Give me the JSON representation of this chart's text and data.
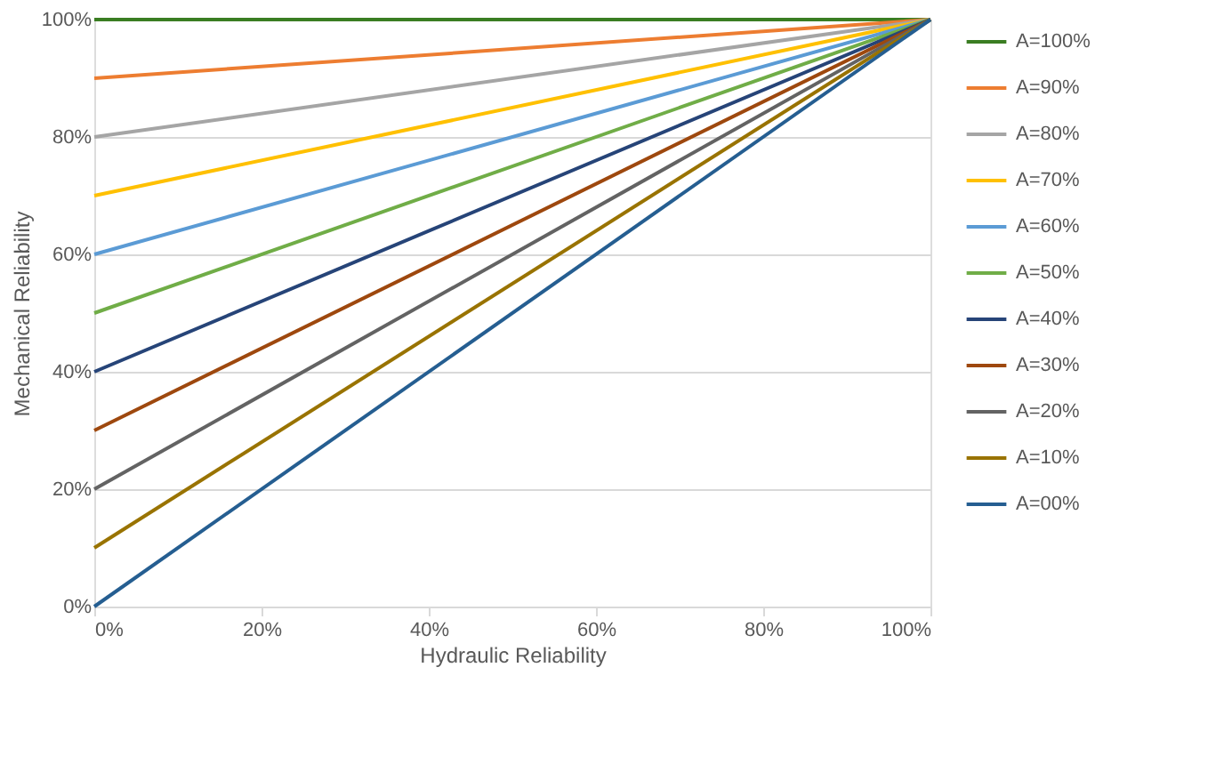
{
  "chart_data": {
    "type": "line",
    "xlabel": "Hydraulic Reliability",
    "ylabel": "Mechanical Reliability",
    "x": [
      0,
      100
    ],
    "xlim": [
      0,
      100
    ],
    "ylim": [
      0,
      100
    ],
    "xticks": [
      {
        "value": 0,
        "label": "0%"
      },
      {
        "value": 20,
        "label": "20%"
      },
      {
        "value": 40,
        "label": "40%"
      },
      {
        "value": 60,
        "label": "60%"
      },
      {
        "value": 80,
        "label": "80%"
      },
      {
        "value": 100,
        "label": "100%"
      }
    ],
    "yticks": [
      {
        "value": 0,
        "label": "0%"
      },
      {
        "value": 20,
        "label": "20%"
      },
      {
        "value": 40,
        "label": "40%"
      },
      {
        "value": 60,
        "label": "60%"
      },
      {
        "value": 80,
        "label": "80%"
      },
      {
        "value": 100,
        "label": "100%"
      }
    ],
    "grid": "y",
    "legend": "right",
    "marker": "none",
    "line_style": "solid",
    "series": [
      {
        "name": "A=100%",
        "color": "#3a7d22",
        "values": [
          100,
          100
        ]
      },
      {
        "name": "A=90%",
        "color": "#ed7d31",
        "values": [
          90,
          100
        ]
      },
      {
        "name": "A=80%",
        "color": "#a5a5a5",
        "values": [
          80,
          100
        ]
      },
      {
        "name": "A=70%",
        "color": "#ffc000",
        "values": [
          70,
          100
        ]
      },
      {
        "name": "A=60%",
        "color": "#5b9bd5",
        "values": [
          60,
          100
        ]
      },
      {
        "name": "A=50%",
        "color": "#70ad47",
        "values": [
          50,
          100
        ]
      },
      {
        "name": "A=40%",
        "color": "#264478",
        "values": [
          40,
          100
        ]
      },
      {
        "name": "A=30%",
        "color": "#9e480e",
        "values": [
          30,
          100
        ]
      },
      {
        "name": "A=20%",
        "color": "#636363",
        "values": [
          20,
          100
        ]
      },
      {
        "name": "A=10%",
        "color": "#997300",
        "values": [
          10,
          100
        ]
      },
      {
        "name": "A=00%",
        "color": "#255e91",
        "values": [
          0,
          100
        ]
      }
    ]
  }
}
